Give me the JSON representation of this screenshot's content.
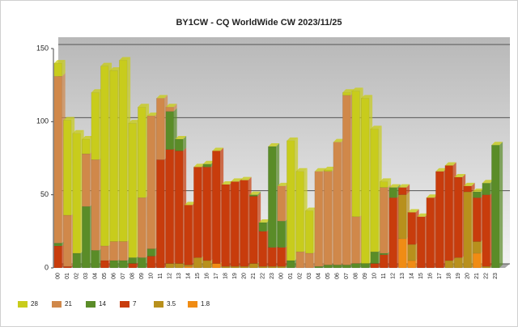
{
  "chart_data": {
    "type": "stacked_bar",
    "title": "BY1CW - CQ WorldWide CW 2023/11/25",
    "categories": [
      "00",
      "01",
      "02",
      "03",
      "04",
      "05",
      "06",
      "07",
      "08",
      "09",
      "10",
      "11",
      "12",
      "13",
      "14",
      "15",
      "16",
      "17",
      "18",
      "19",
      "20",
      "21",
      "22",
      "23",
      "00",
      "01",
      "02",
      "03",
      "04",
      "05",
      "06",
      "07",
      "08",
      "09",
      "10",
      "11",
      "12",
      "13",
      "14",
      "15",
      "16",
      "17",
      "18",
      "19",
      "20",
      "21",
      "22",
      "23"
    ],
    "series": [
      {
        "name": "28",
        "color": "#c8cc1c",
        "values": [
          9,
          65,
          82,
          10,
          46,
          123,
          117,
          124,
          92,
          62,
          0,
          0,
          0,
          0,
          0,
          0,
          0,
          0,
          0,
          0,
          0,
          0,
          0,
          0,
          0,
          82,
          55,
          29,
          0,
          1,
          0,
          2,
          86,
          113,
          84,
          4,
          0,
          0,
          0,
          0,
          0,
          0,
          0,
          0,
          0,
          0,
          0,
          0
        ]
      },
      {
        "name": "21",
        "color": "#d0884a",
        "values": [
          114,
          35,
          0,
          36,
          62,
          10,
          13,
          13,
          0,
          41,
          91,
          42,
          3,
          0,
          0,
          0,
          0,
          0,
          0,
          0,
          0,
          0,
          0,
          0,
          24,
          0,
          11,
          10,
          65,
          64,
          84,
          116,
          32,
          0,
          0,
          45,
          0,
          0,
          0,
          0,
          0,
          0,
          0,
          0,
          0,
          0,
          0,
          0
        ]
      },
      {
        "name": "14",
        "color": "#5a8c28",
        "values": [
          2,
          0,
          10,
          42,
          12,
          0,
          5,
          5,
          4,
          7,
          5,
          0,
          26,
          8,
          0,
          0,
          2,
          0,
          0,
          0,
          0,
          1,
          6,
          69,
          18,
          5,
          0,
          0,
          1,
          2,
          2,
          2,
          3,
          3,
          8,
          1,
          7,
          0,
          0,
          0,
          0,
          0,
          0,
          0,
          0,
          4,
          8,
          84
        ]
      },
      {
        "name": "7",
        "color": "#c83c0c",
        "values": [
          15,
          1,
          0,
          0,
          0,
          5,
          0,
          0,
          3,
          0,
          8,
          74,
          78,
          77,
          41,
          62,
          64,
          77,
          56,
          58,
          59,
          46,
          24,
          13,
          13,
          0,
          0,
          0,
          0,
          0,
          0,
          0,
          0,
          0,
          3,
          9,
          48,
          5,
          22,
          35,
          48,
          66,
          65,
          55,
          4,
          30,
          49,
          0
        ]
      },
      {
        "name": "3.5",
        "color": "#b8901c",
        "values": [
          0,
          0,
          0,
          0,
          0,
          0,
          0,
          0,
          0,
          0,
          0,
          0,
          3,
          3,
          1,
          7,
          5,
          0,
          1,
          1,
          1,
          3,
          1,
          1,
          1,
          0,
          0,
          0,
          0,
          0,
          0,
          0,
          0,
          0,
          0,
          0,
          0,
          30,
          11,
          0,
          0,
          0,
          5,
          7,
          52,
          8,
          1,
          0
        ]
      },
      {
        "name": "1.8",
        "color": "#f08c14",
        "values": [
          0,
          0,
          0,
          0,
          0,
          0,
          0,
          0,
          0,
          0,
          0,
          0,
          0,
          0,
          1,
          0,
          0,
          3,
          0,
          0,
          0,
          0,
          0,
          0,
          0,
          0,
          0,
          0,
          0,
          0,
          0,
          0,
          0,
          0,
          0,
          0,
          0,
          20,
          5,
          0,
          0,
          0,
          0,
          0,
          0,
          10,
          0,
          0
        ]
      }
    ],
    "ylim": [
      0,
      150
    ],
    "yticks": [
      0,
      50,
      100,
      150
    ],
    "grid": true,
    "legend": "bottom-left"
  }
}
